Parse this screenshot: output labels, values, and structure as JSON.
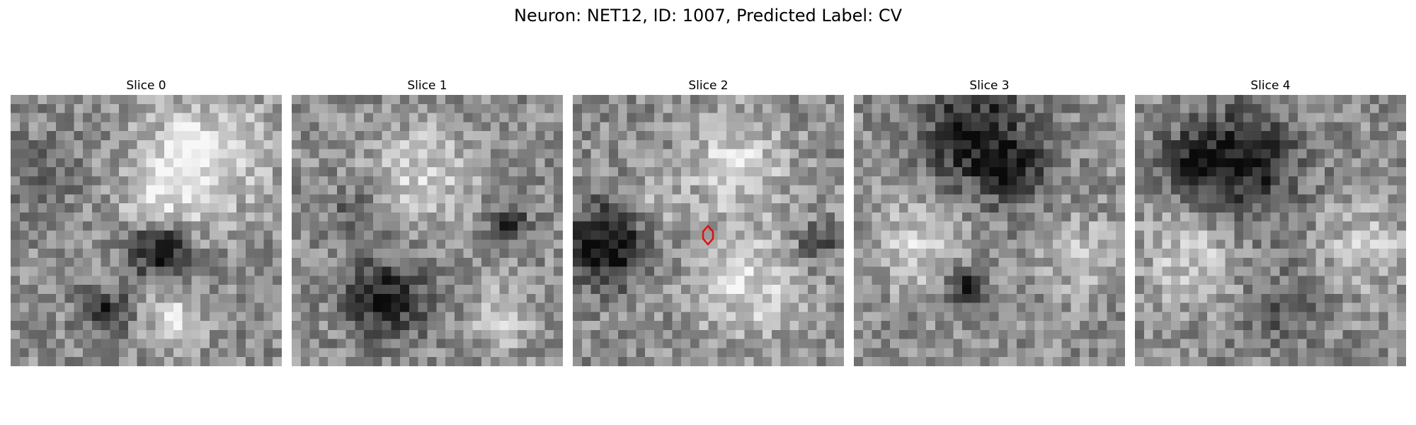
{
  "figure": {
    "title": "Neuron: NET12, ID: 1007, Predicted Label: CV"
  },
  "panels": [
    {
      "title": "Slice 0",
      "marker": false
    },
    {
      "title": "Slice 1",
      "marker": false
    },
    {
      "title": "Slice 2",
      "marker": true
    },
    {
      "title": "Slice 3",
      "marker": false
    },
    {
      "title": "Slice 4",
      "marker": false
    }
  ],
  "marker_color": "#e01010",
  "colormap": "grayscale"
}
